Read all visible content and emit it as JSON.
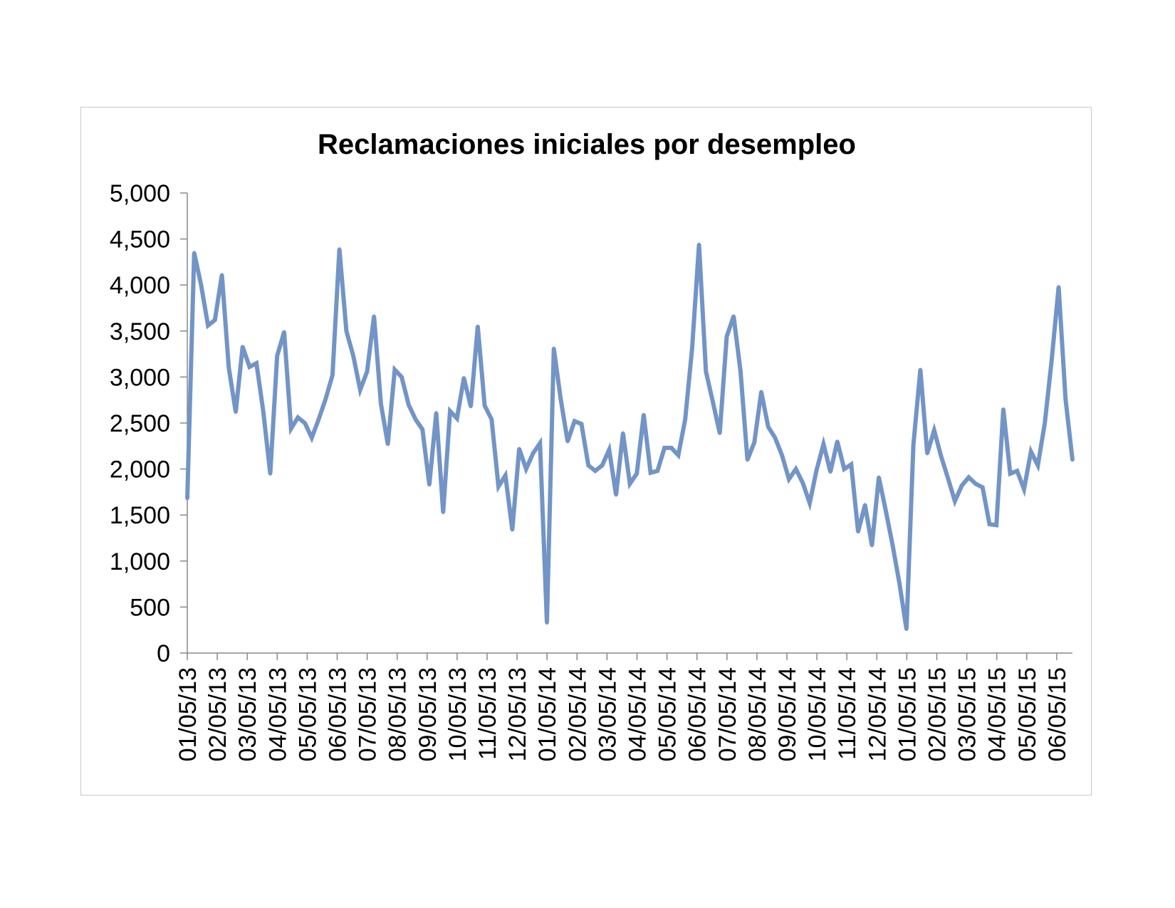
{
  "chart_data": {
    "type": "line",
    "title": "Reclamaciones iniciales por desempleo",
    "xlabel": "",
    "ylabel": "",
    "ylim": [
      0,
      5000
    ],
    "y_ticks": [
      0,
      500,
      1000,
      1500,
      2000,
      2500,
      3000,
      3500,
      4000,
      4500,
      5000
    ],
    "y_tick_labels": [
      "0",
      "500",
      "1,000",
      "1,500",
      "2,000",
      "2,500",
      "3,000",
      "3,500",
      "4,000",
      "4,500",
      "5,000"
    ],
    "x_tick_labels": [
      "01/05/13",
      "02/05/13",
      "03/05/13",
      "04/05/13",
      "05/05/13",
      "06/05/13",
      "07/05/13",
      "08/05/13",
      "09/05/13",
      "10/05/13",
      "11/05/13",
      "12/05/13",
      "01/05/14",
      "02/05/14",
      "03/05/14",
      "04/05/14",
      "05/05/14",
      "06/05/14",
      "07/05/14",
      "08/05/14",
      "09/05/14",
      "10/05/14",
      "11/05/14",
      "12/05/14",
      "01/05/15",
      "02/05/15",
      "03/05/15",
      "04/05/15",
      "05/05/15",
      "06/05/15"
    ],
    "grid": false,
    "line_color": "#7294c7",
    "series": [
      {
        "values": [
          1680,
          4350,
          4000,
          3560,
          3620,
          4110,
          3100,
          2620,
          3330,
          3110,
          3150,
          2620,
          1950,
          3230,
          3490,
          2440,
          2560,
          2500,
          2340,
          2540,
          2760,
          3020,
          4390,
          3500,
          3230,
          2860,
          3060,
          3660,
          2710,
          2270,
          3080,
          3000,
          2700,
          2540,
          2430,
          1830,
          2610,
          1530,
          2630,
          2550,
          2990,
          2680,
          3550,
          2690,
          2540,
          1810,
          1930,
          1340,
          2220,
          2000,
          2170,
          2280,
          330,
          3310,
          2760,
          2300,
          2520,
          2490,
          2040,
          1980,
          2040,
          2210,
          1720,
          2390,
          1840,
          1950,
          2590,
          1960,
          1980,
          2230,
          2230,
          2150,
          2540,
          3310,
          4440,
          3060,
          2730,
          2390,
          3440,
          3660,
          3060,
          2100,
          2290,
          2840,
          2460,
          2340,
          2150,
          1890,
          2000,
          1850,
          1630,
          1990,
          2270,
          1970,
          2300,
          2000,
          2050,
          1320,
          1610,
          1170,
          1910,
          1550,
          1170,
          750,
          260,
          2260,
          3080,
          2170,
          2420,
          2140,
          1900,
          1650,
          1820,
          1910,
          1840,
          1800,
          1400,
          1390,
          2650,
          1950,
          1980,
          1780,
          2190,
          2040,
          2500,
          3190,
          3980,
          2760,
          2100
        ]
      }
    ]
  }
}
